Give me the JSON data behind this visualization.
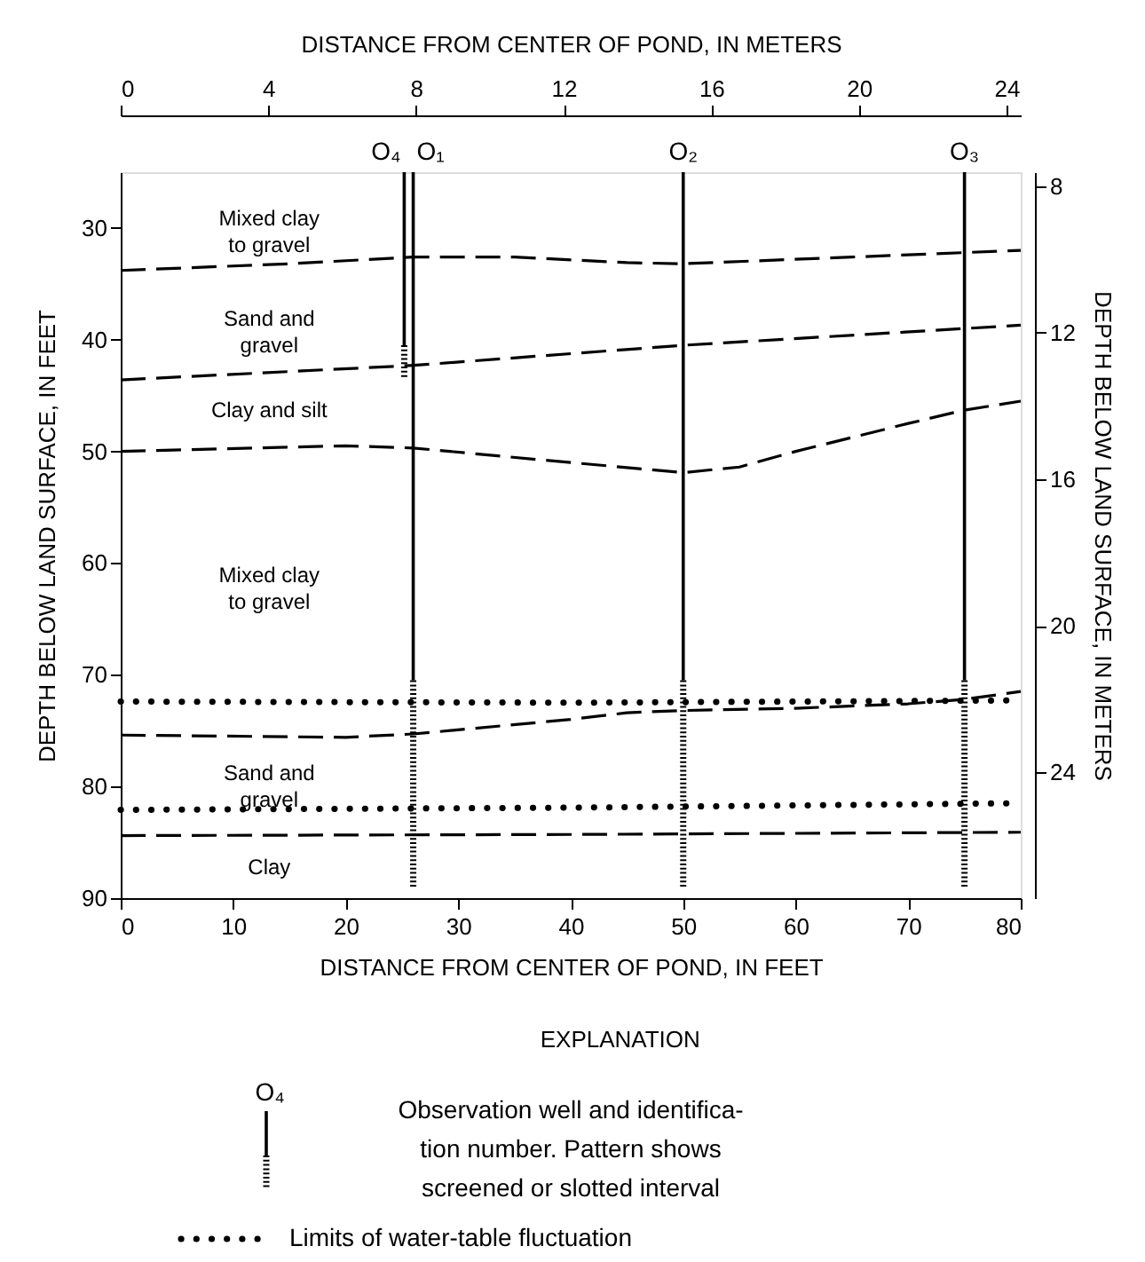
{
  "chart_data": {
    "type": "line",
    "xlabel": "DISTANCE FROM CENTER OF POND, IN FEET",
    "x2label": "DISTANCE FROM CENTER OF POND, IN METERS",
    "ylabel": "DEPTH BELOW LAND SURFACE, IN FEET",
    "y2label": "DEPTH BELOW LAND SURFACE, IN METERS",
    "xlim": [
      0,
      80
    ],
    "xticks": [
      0,
      10,
      20,
      30,
      40,
      50,
      60,
      70,
      80
    ],
    "x2lim": [
      0,
      24.384
    ],
    "x2ticks": [
      0,
      4,
      8,
      12,
      16,
      20,
      24
    ],
    "ylim": [
      90,
      25
    ],
    "yticks": [
      30,
      40,
      50,
      60,
      70,
      80,
      90
    ],
    "y2lim": [
      27.432,
      7.62
    ],
    "y2ticks": [
      8,
      12,
      16,
      20,
      24
    ],
    "grid": false,
    "legend": "bottom",
    "legend_title": "EXPLANATION",
    "series": [
      {
        "line_style": "dashed",
        "color": "#000000",
        "x": [
          0,
          15,
          26,
          35,
          45,
          50,
          65,
          80
        ],
        "values": [
          33.8,
          33.2,
          32.6,
          32.6,
          33.1,
          33.2,
          32.6,
          32.0
        ]
      },
      {
        "line_style": "dashed",
        "color": "#000000",
        "x": [
          0,
          26,
          50,
          75,
          80
        ],
        "values": [
          43.6,
          42.3,
          40.5,
          39.0,
          38.7
        ]
      },
      {
        "line_style": "dashed",
        "color": "#000000",
        "x": [
          0,
          20,
          26,
          40,
          50,
          55,
          60,
          70,
          75,
          80
        ],
        "values": [
          50.0,
          49.5,
          49.7,
          51.0,
          51.9,
          51.4,
          50.0,
          47.5,
          46.3,
          45.5
        ]
      },
      {
        "line_style": "dashed",
        "color": "#000000",
        "x": [
          0,
          20,
          26,
          40,
          45,
          50,
          60,
          70,
          75,
          80
        ],
        "values": [
          75.4,
          75.6,
          75.3,
          74.0,
          73.4,
          73.2,
          73.0,
          72.6,
          72.2,
          71.5
        ]
      },
      {
        "line_style": "dashed",
        "color": "#000000",
        "x": [
          0,
          40,
          80
        ],
        "values": [
          84.4,
          84.3,
          84.1
        ]
      },
      {
        "name": "Limits of water-table fluctuation",
        "line_style": "dotted",
        "color": "#000000",
        "x": [
          0,
          40,
          80
        ],
        "values": [
          72.4,
          72.5,
          72.3
        ]
      },
      {
        "line_style": "dotted",
        "color": "#000000",
        "x": [
          0,
          40,
          80
        ],
        "values": [
          82.1,
          81.9,
          81.5
        ]
      },
      {
        "name": "O₄",
        "line_style": "solid",
        "color": "#000000",
        "x": [
          25.2,
          25.2
        ],
        "values": [
          25,
          40.5
        ]
      },
      {
        "line_style": "dotted",
        "color": "#000000",
        "x": [
          25.2,
          25.2
        ],
        "values": [
          40.5,
          43.5
        ]
      },
      {
        "name": "O₁",
        "line_style": "solid",
        "color": "#000000",
        "x": [
          26,
          26
        ],
        "values": [
          25,
          70.5
        ]
      },
      {
        "line_style": "dotted",
        "color": "#000000",
        "x": [
          26,
          26
        ],
        "values": [
          70.5,
          89
        ]
      },
      {
        "name": "O₂",
        "line_style": "solid",
        "color": "#000000",
        "x": [
          50,
          50
        ],
        "values": [
          25,
          70.5
        ]
      },
      {
        "line_style": "dotted",
        "color": "#000000",
        "x": [
          50,
          50
        ],
        "values": [
          70.5,
          89
        ]
      },
      {
        "name": "O₃",
        "line_style": "solid",
        "color": "#000000",
        "x": [
          75,
          75
        ],
        "values": [
          25,
          70.5
        ]
      },
      {
        "line_style": "dotted",
        "color": "#000000",
        "x": [
          75,
          75
        ],
        "values": [
          70.5,
          89
        ]
      }
    ],
    "annotations": [
      "Mixed clay\nto gravel",
      "Sand and\ngravel",
      "Clay and silt",
      "Mixed clay\nto gravel",
      "Sand and\ngravel",
      "Clay",
      "Observation well and identifica-\ntion number.  Pattern shows\nscreened or slotted interval"
    ]
  }
}
